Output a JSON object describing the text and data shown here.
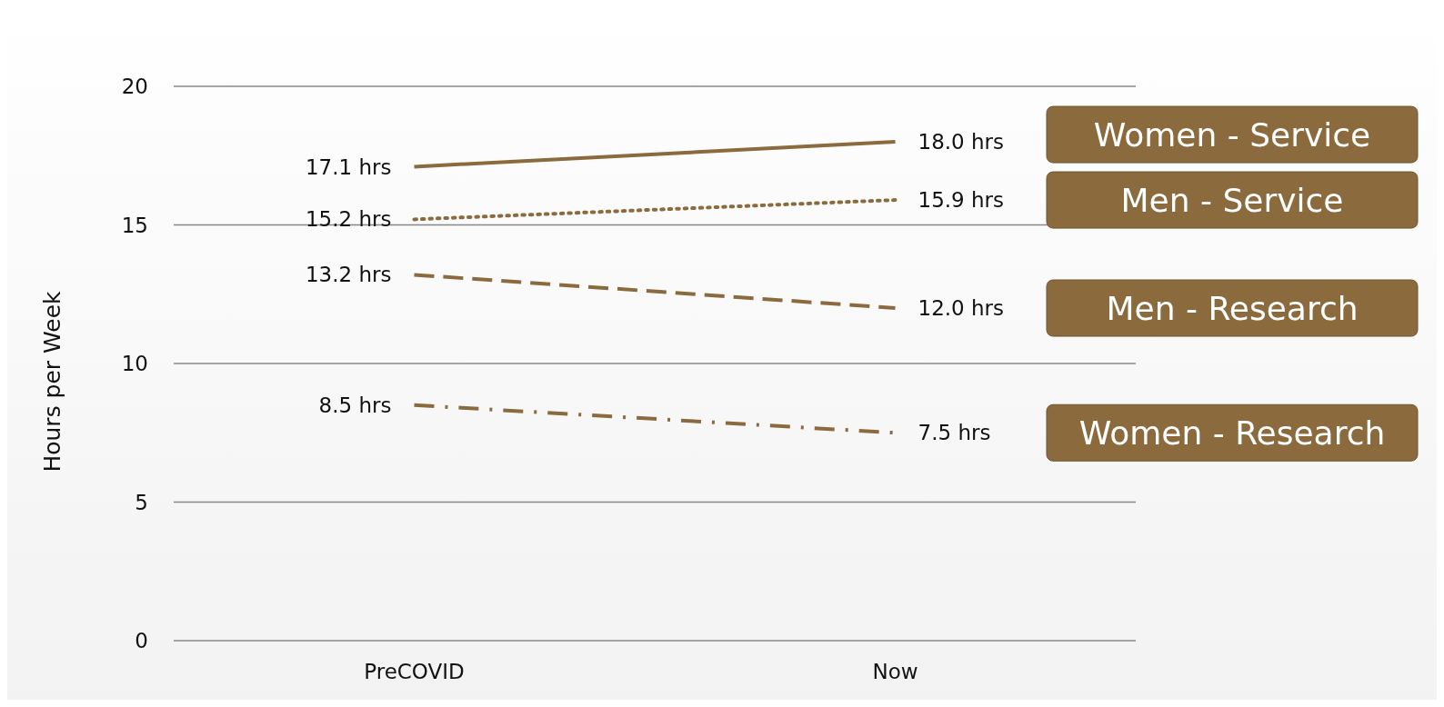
{
  "chart_data": {
    "type": "line",
    "ylabel": "Hours per Week",
    "categories": [
      "PreCOVID",
      "Now"
    ],
    "series": [
      {
        "name": "Women - Service",
        "color": "#8b6b3d",
        "values": [
          17.1,
          18.0
        ],
        "value_labels": [
          "17.1 hrs",
          "18.0 hrs"
        ],
        "line_style": "solid"
      },
      {
        "name": "Men - Service",
        "color": "#8b6b3d",
        "values": [
          15.2,
          15.9
        ],
        "value_labels": [
          "15.2 hrs",
          "15.9 hrs"
        ],
        "line_style": "dotted"
      },
      {
        "name": "Men - Research",
        "color": "#8b6b3d",
        "values": [
          13.2,
          12.0
        ],
        "value_labels": [
          "13.2 hrs",
          "12.0 hrs"
        ],
        "line_style": "dashed"
      },
      {
        "name": "Women - Research",
        "color": "#8b6b3d",
        "values": [
          8.5,
          7.5
        ],
        "value_labels": [
          "8.5 hrs",
          "7.5 hrs"
        ],
        "line_style": "dashdot"
      }
    ],
    "ylim": [
      0,
      20
    ],
    "yticks": [
      0,
      5,
      10,
      15,
      20
    ],
    "grid": "y",
    "legend": "right",
    "marker": "none"
  }
}
